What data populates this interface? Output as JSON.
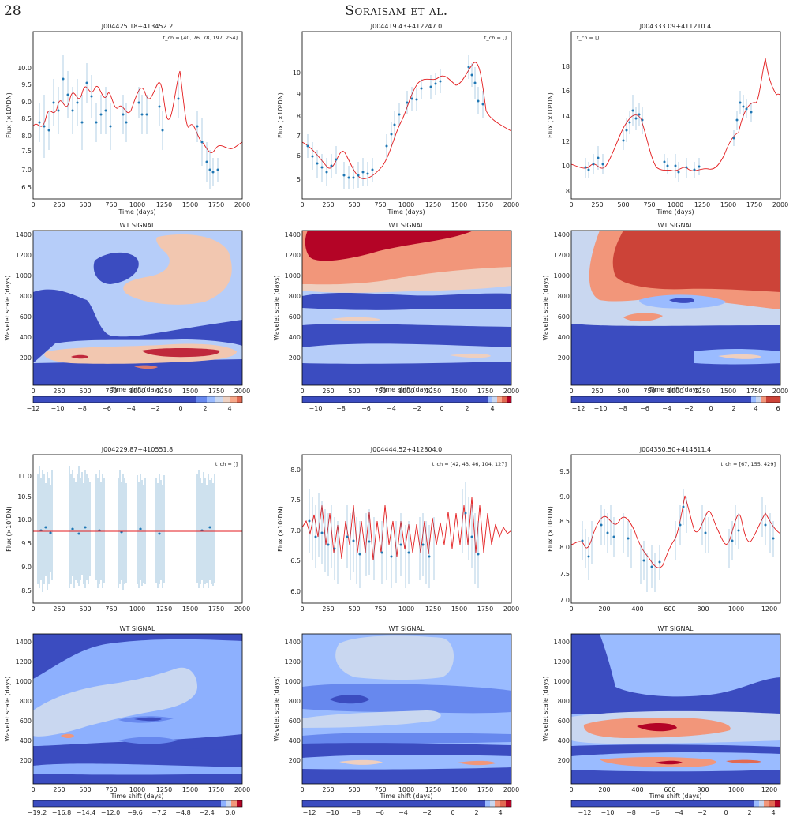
{
  "header": {
    "page_number": "28",
    "running_head": "Soraisam et al."
  },
  "panels": [
    {
      "title": "J004425.18+413452.2",
      "tch": "t_ch = [40, 76, 78, 197, 254]",
      "xticks": [
        "0",
        "250",
        "500",
        "750",
        "1000",
        "1250",
        "1500",
        "1750",
        "2000"
      ],
      "yticks": [
        "6.5",
        "7.0",
        "7.5",
        "8.0",
        "8.5",
        "9.0",
        "9.5",
        "10.0"
      ],
      "xlabel": "Time (days)",
      "ylabel": "Flux (×10³DN)"
    },
    {
      "title": "J004419.43+412247.0",
      "tch": "t_ch = []",
      "xticks": [
        "0",
        "250",
        "500",
        "750",
        "1000",
        "1250",
        "1500",
        "1750",
        "2000"
      ],
      "yticks": [
        "5",
        "6",
        "7",
        "8",
        "9",
        "10"
      ],
      "xlabel": "Time (days)",
      "ylabel": "Flux (×10³DN)"
    },
    {
      "title": "J004333.09+411210.4",
      "tch": "t_ch = []",
      "xticks": [
        "0",
        "250",
        "500",
        "750",
        "1000",
        "1250",
        "1500",
        "1750",
        "2000"
      ],
      "yticks": [
        "8",
        "10",
        "12",
        "14",
        "16",
        "18"
      ],
      "xlabel": "Time (days)",
      "ylabel": "Flux (×10³DN)"
    },
    {
      "title": "J004229.87+410551.8",
      "tch": "t_ch = []",
      "xticks": [
        "0",
        "250",
        "500",
        "750",
        "1000",
        "1250",
        "1500",
        "1750",
        "2000"
      ],
      "yticks": [
        "8.5",
        "9.0",
        "9.5",
        "10.0",
        "10.5",
        "11.0"
      ],
      "xlabel": "Time (days)",
      "ylabel": "Flux (×10³DN)"
    },
    {
      "title": "J004444.52+412804.0",
      "tch": "t_ch = [42, 43, 46, 104, 127]",
      "xticks": [
        "0",
        "250",
        "500",
        "750",
        "1000",
        "1250",
        "1500",
        "1750",
        "2000"
      ],
      "yticks": [
        "6.0",
        "6.5",
        "7.0",
        "7.5",
        "8.0"
      ],
      "xlabel": "Time (days)",
      "ylabel": "Flux (×10³DN)"
    },
    {
      "title": "J004350.50+414611.4",
      "tch": "t_ch = [67, 155, 429]",
      "xticks": [
        "0",
        "200",
        "400",
        "600",
        "800",
        "1000",
        "1200"
      ],
      "yticks": [
        "7.0",
        "7.5",
        "8.0",
        "8.5",
        "9.0",
        "9.5"
      ],
      "xlabel": "Time (days)",
      "ylabel": "Flux (×10³DN)"
    }
  ],
  "wavelets": [
    {
      "title": "WT SIGNAL",
      "xlabel": "Time shift (days)",
      "ylabel": "Wavelet scale (days)",
      "xticks": [
        "0",
        "250",
        "500",
        "750",
        "1000",
        "1250",
        "1500",
        "1750",
        "2000"
      ],
      "yticks": [
        "200",
        "400",
        "600",
        "800",
        "1000",
        "1200",
        "1400"
      ],
      "cbar_ticks": [
        "−12",
        "−10",
        "−8",
        "−6",
        "−4",
        "−2",
        "0",
        "2",
        "4"
      ]
    },
    {
      "title": "WT SIGNAL",
      "xlabel": "Time shift (days)",
      "ylabel": "Wavelet scale (days)",
      "xticks": [
        "0",
        "250",
        "500",
        "750",
        "1000",
        "1250",
        "1500",
        "1750",
        "2000"
      ],
      "yticks": [
        "200",
        "400",
        "600",
        "800",
        "1000",
        "1200",
        "1400"
      ],
      "cbar_ticks": [
        "−10",
        "−8",
        "−6",
        "−4",
        "−2",
        "0",
        "2",
        "4"
      ]
    },
    {
      "title": "WT SIGNAL",
      "xlabel": "Time shift (days)",
      "ylabel": "Wavelet scale (days)",
      "xticks": [
        "0",
        "250",
        "500",
        "750",
        "1000",
        "1250",
        "1500",
        "1750",
        "2000"
      ],
      "yticks": [
        "200",
        "400",
        "600",
        "800",
        "1000",
        "1200",
        "1400"
      ],
      "cbar_ticks": [
        "−12",
        "−10",
        "−8",
        "−6",
        "−4",
        "−2",
        "0",
        "2",
        "4",
        "6"
      ]
    },
    {
      "title": "WT SIGNAL",
      "xlabel": "Time shift (days)",
      "ylabel": "Wavelet scale (days)",
      "xticks": [
        "0",
        "250",
        "500",
        "750",
        "1000",
        "1250",
        "1500",
        "1750",
        "2000"
      ],
      "yticks": [
        "200",
        "400",
        "600",
        "800",
        "1000",
        "1200",
        "1400"
      ],
      "cbar_ticks": [
        "−19.2",
        "−16.8",
        "−14.4",
        "−12.0",
        "−9.6",
        "−7.2",
        "−4.8",
        "−2.4",
        "0.0"
      ]
    },
    {
      "title": "WT SIGNAL",
      "xlabel": "Time shift (days)",
      "ylabel": "Wavelet scale (days)",
      "xticks": [
        "0",
        "250",
        "500",
        "750",
        "1000",
        "1250",
        "1500",
        "1750",
        "2000"
      ],
      "yticks": [
        "200",
        "400",
        "600",
        "800",
        "1000",
        "1200",
        "1400"
      ],
      "cbar_ticks": [
        "−12",
        "−10",
        "−8",
        "−6",
        "−4",
        "−2",
        "0",
        "2",
        "4"
      ]
    },
    {
      "title": "WT SIGNAL",
      "xlabel": "Time shift (days)",
      "ylabel": "Wavelet scale (days)",
      "xticks": [
        "0",
        "200",
        "400",
        "600",
        "800",
        "1000",
        "1200"
      ],
      "yticks": [
        "200",
        "400",
        "600",
        "800",
        "1000",
        "1200",
        "1400"
      ],
      "cbar_ticks": [
        "−12",
        "−10",
        "−8",
        "−6",
        "−4",
        "−2",
        "0",
        "2",
        "4"
      ]
    }
  ],
  "chart_data": [
    {
      "type": "scatter",
      "title": "J004425.18+413452.2",
      "xlabel": "Time (days)",
      "ylabel": "Flux (×10³DN)",
      "xlim": [
        0,
        2000
      ],
      "ylim": [
        6.3,
        10.5
      ]
    },
    {
      "type": "scatter",
      "title": "J004419.43+412247.0",
      "xlabel": "Time (days)",
      "ylabel": "Flux (×10³DN)",
      "xlim": [
        0,
        2000
      ],
      "ylim": [
        4.3,
        11.0
      ]
    },
    {
      "type": "scatter",
      "title": "J004333.09+411210.4",
      "xlabel": "Time (days)",
      "ylabel": "Flux (×10³DN)",
      "xlim": [
        0,
        2000
      ],
      "ylim": [
        7.5,
        19.2
      ]
    },
    {
      "type": "scatter",
      "title": "J004229.87+410551.8",
      "xlabel": "Time (days)",
      "ylabel": "Flux (×10³DN)",
      "xlim": [
        0,
        2000
      ],
      "ylim": [
        8.3,
        11.5
      ]
    },
    {
      "type": "scatter",
      "title": "J004444.52+412804.0",
      "xlabel": "Time (days)",
      "ylabel": "Flux (×10³DN)",
      "xlim": [
        0,
        2000
      ],
      "ylim": [
        5.85,
        8.25
      ]
    },
    {
      "type": "scatter",
      "title": "J004350.50+414611.4",
      "xlabel": "Time (days)",
      "ylabel": "Flux (×10³DN)",
      "xlim": [
        0,
        1270
      ],
      "ylim": [
        6.95,
        9.75
      ]
    },
    {
      "type": "heatmap",
      "title": "WT SIGNAL",
      "xlabel": "Time shift (days)",
      "ylabel": "Wavelet scale (days)",
      "xlim": [
        0,
        2000
      ],
      "ylim": [
        0,
        1500
      ],
      "colorbar_range": [
        -12,
        5
      ]
    },
    {
      "type": "heatmap",
      "title": "WT SIGNAL",
      "xlabel": "Time shift (days)",
      "ylabel": "Wavelet scale (days)",
      "xlim": [
        0,
        2000
      ],
      "ylim": [
        0,
        1500
      ],
      "colorbar_range": [
        -12,
        6
      ]
    },
    {
      "type": "heatmap",
      "title": "WT SIGNAL",
      "xlabel": "Time shift (days)",
      "ylabel": "Wavelet scale (days)",
      "xlim": [
        0,
        2000
      ],
      "ylim": [
        0,
        1500
      ],
      "colorbar_range": [
        -13,
        6
      ]
    },
    {
      "type": "heatmap",
      "title": "WT SIGNAL",
      "xlabel": "Time shift (days)",
      "ylabel": "Wavelet scale (days)",
      "xlim": [
        0,
        2000
      ],
      "ylim": [
        0,
        1500
      ],
      "colorbar_range": [
        -19.2,
        1.5
      ]
    },
    {
      "type": "heatmap",
      "title": "WT SIGNAL",
      "xlabel": "Time shift (days)",
      "ylabel": "Wavelet scale (days)",
      "xlim": [
        0,
        2000
      ],
      "ylim": [
        0,
        1500
      ],
      "colorbar_range": [
        -13,
        5
      ]
    },
    {
      "type": "heatmap",
      "title": "WT SIGNAL",
      "xlabel": "Time shift (days)",
      "ylabel": "Wavelet scale (days)",
      "xlim": [
        0,
        1270
      ],
      "ylim": [
        0,
        1500
      ],
      "colorbar_range": [
        -13,
        5
      ]
    }
  ]
}
